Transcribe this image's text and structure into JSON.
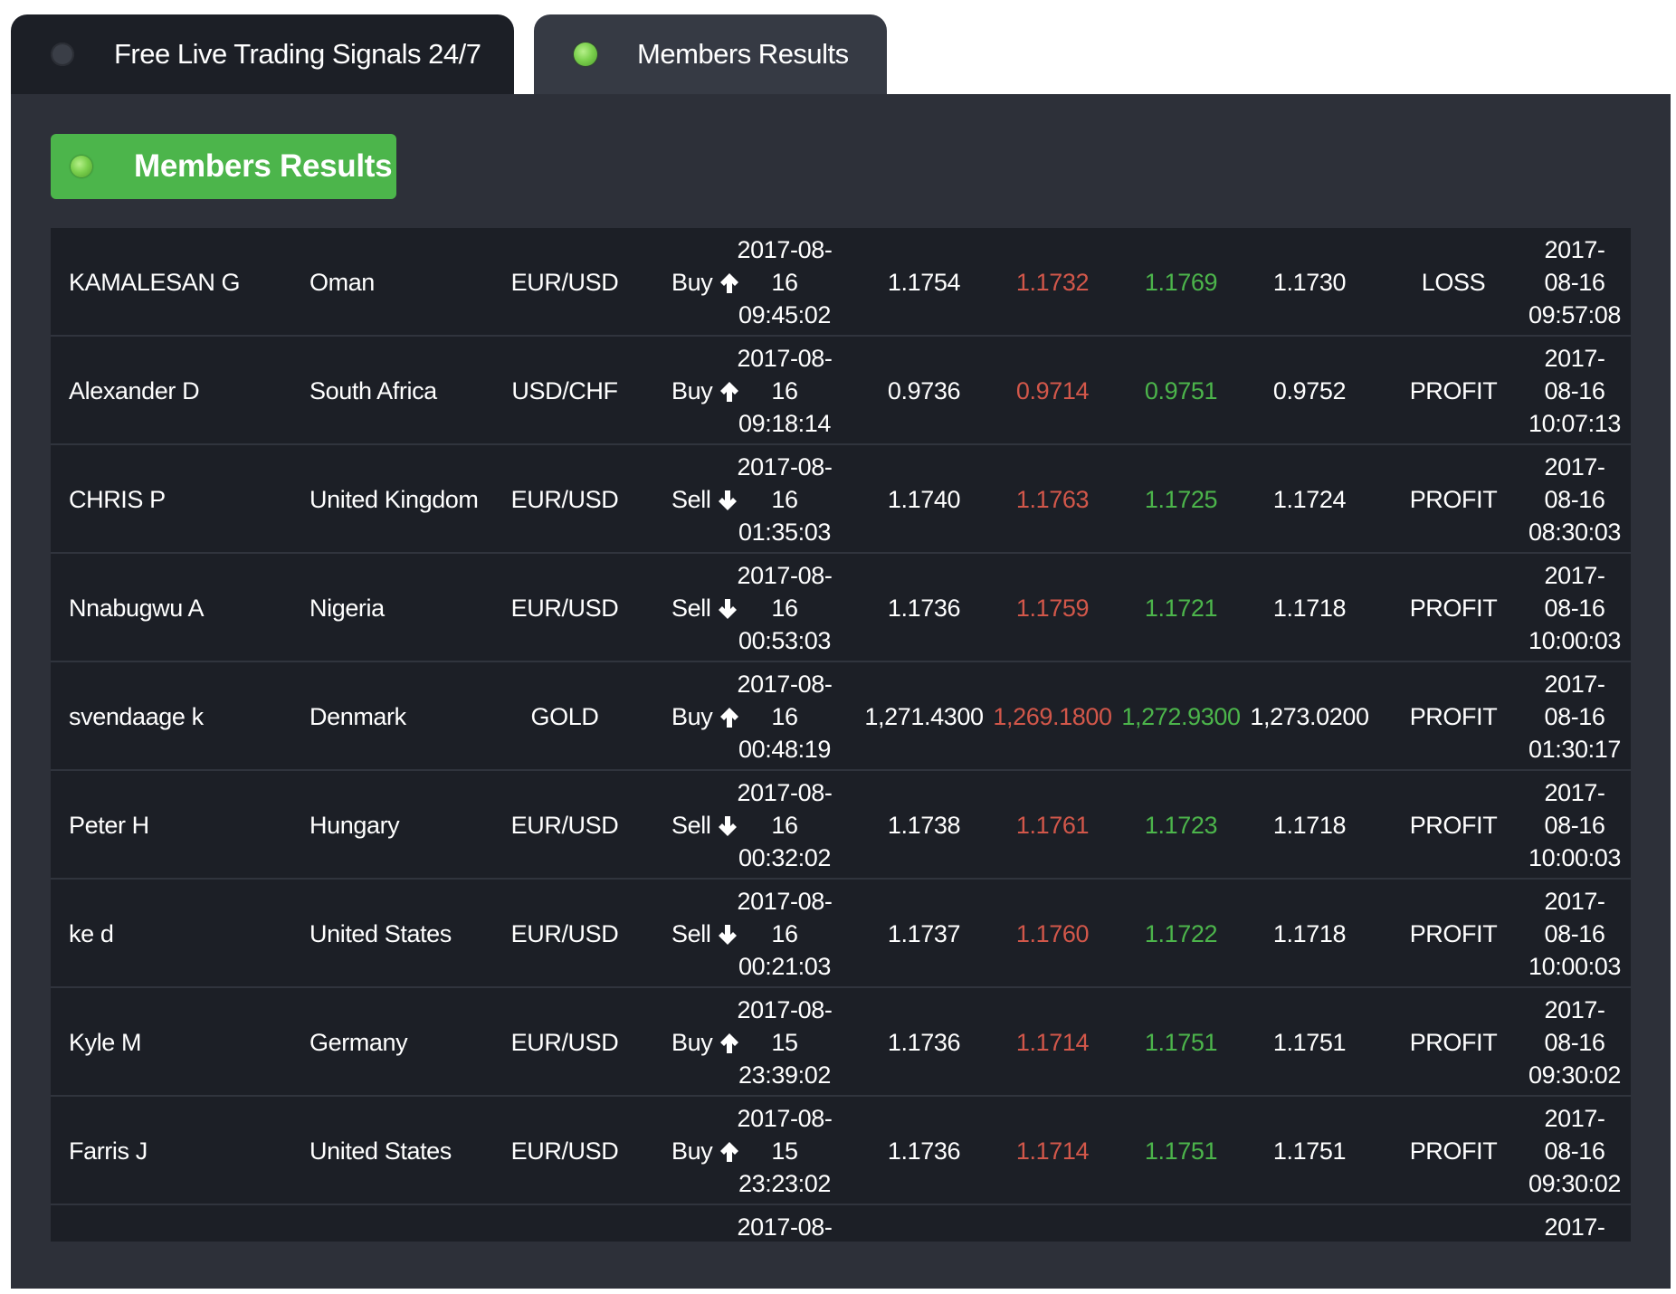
{
  "tabs": [
    {
      "label": "Free Live Trading Signals 24/7",
      "active": false
    },
    {
      "label": "Members Results",
      "active": true
    }
  ],
  "section": {
    "title": "Members Results"
  },
  "colors": {
    "stop_loss": "#d2574a",
    "take_profit": "#4cb54b",
    "accent": "#4cb54b"
  },
  "rows": [
    {
      "name": "KAMALESAN G",
      "country": "Oman",
      "pair": "EUR/USD",
      "direction": "Buy",
      "icon": "arrow-up-icon",
      "opened": [
        "2017-08-",
        "16",
        "09:45:02"
      ],
      "entry": "1.1754",
      "stop_loss": "1.1732",
      "take_profit": "1.1769",
      "close": "1.1730",
      "result": "LOSS",
      "closed": [
        "2017-",
        "08-16",
        "09:57:08"
      ]
    },
    {
      "name": "Alexander D",
      "country": "South Africa",
      "pair": "USD/CHF",
      "direction": "Buy",
      "icon": "arrow-up-icon",
      "opened": [
        "2017-08-",
        "16",
        "09:18:14"
      ],
      "entry": "0.9736",
      "stop_loss": "0.9714",
      "take_profit": "0.9751",
      "close": "0.9752",
      "result": "PROFIT",
      "closed": [
        "2017-",
        "08-16",
        "10:07:13"
      ]
    },
    {
      "name": "CHRIS P",
      "country": "United Kingdom",
      "pair": "EUR/USD",
      "direction": "Sell",
      "icon": "arrow-down-icon",
      "opened": [
        "2017-08-",
        "16",
        "01:35:03"
      ],
      "entry": "1.1740",
      "stop_loss": "1.1763",
      "take_profit": "1.1725",
      "close": "1.1724",
      "result": "PROFIT",
      "closed": [
        "2017-",
        "08-16",
        "08:30:03"
      ]
    },
    {
      "name": "Nnabugwu A",
      "country": "Nigeria",
      "pair": "EUR/USD",
      "direction": "Sell",
      "icon": "arrow-down-icon",
      "opened": [
        "2017-08-",
        "16",
        "00:53:03"
      ],
      "entry": "1.1736",
      "stop_loss": "1.1759",
      "take_profit": "1.1721",
      "close": "1.1718",
      "result": "PROFIT",
      "closed": [
        "2017-",
        "08-16",
        "10:00:03"
      ]
    },
    {
      "name": "svendaage k",
      "country": "Denmark",
      "pair": "GOLD",
      "direction": "Buy",
      "icon": "arrow-up-icon",
      "opened": [
        "2017-08-",
        "16",
        "00:48:19"
      ],
      "entry": "1,271.4300",
      "stop_loss": "1,269.1800",
      "take_profit": "1,272.9300",
      "close": "1,273.0200",
      "result": "PROFIT",
      "closed": [
        "2017-",
        "08-16",
        "01:30:17"
      ]
    },
    {
      "name": "Peter H",
      "country": "Hungary",
      "pair": "EUR/USD",
      "direction": "Sell",
      "icon": "arrow-down-icon",
      "opened": [
        "2017-08-",
        "16",
        "00:32:02"
      ],
      "entry": "1.1738",
      "stop_loss": "1.1761",
      "take_profit": "1.1723",
      "close": "1.1718",
      "result": "PROFIT",
      "closed": [
        "2017-",
        "08-16",
        "10:00:03"
      ]
    },
    {
      "name": "ke d",
      "country": "United States",
      "pair": "EUR/USD",
      "direction": "Sell",
      "icon": "arrow-down-icon",
      "opened": [
        "2017-08-",
        "16",
        "00:21:03"
      ],
      "entry": "1.1737",
      "stop_loss": "1.1760",
      "take_profit": "1.1722",
      "close": "1.1718",
      "result": "PROFIT",
      "closed": [
        "2017-",
        "08-16",
        "10:00:03"
      ]
    },
    {
      "name": "Kyle M",
      "country": "Germany",
      "pair": "EUR/USD",
      "direction": "Buy",
      "icon": "arrow-up-icon",
      "opened": [
        "2017-08-",
        "15",
        "23:39:02"
      ],
      "entry": "1.1736",
      "stop_loss": "1.1714",
      "take_profit": "1.1751",
      "close": "1.1751",
      "result": "PROFIT",
      "closed": [
        "2017-",
        "08-16",
        "09:30:02"
      ]
    },
    {
      "name": "Farris J",
      "country": "United States",
      "pair": "EUR/USD",
      "direction": "Buy",
      "icon": "arrow-up-icon",
      "opened": [
        "2017-08-",
        "15",
        "23:23:02"
      ],
      "entry": "1.1736",
      "stop_loss": "1.1714",
      "take_profit": "1.1751",
      "close": "1.1751",
      "result": "PROFIT",
      "closed": [
        "2017-",
        "08-16",
        "09:30:02"
      ]
    },
    {
      "name": "",
      "country": "",
      "pair": "",
      "direction": "",
      "icon": "",
      "opened": [
        "2017-08-",
        "",
        ""
      ],
      "entry": "",
      "stop_loss": "",
      "take_profit": "",
      "close": "",
      "result": "",
      "closed": [
        "2017-",
        "",
        ""
      ]
    }
  ]
}
